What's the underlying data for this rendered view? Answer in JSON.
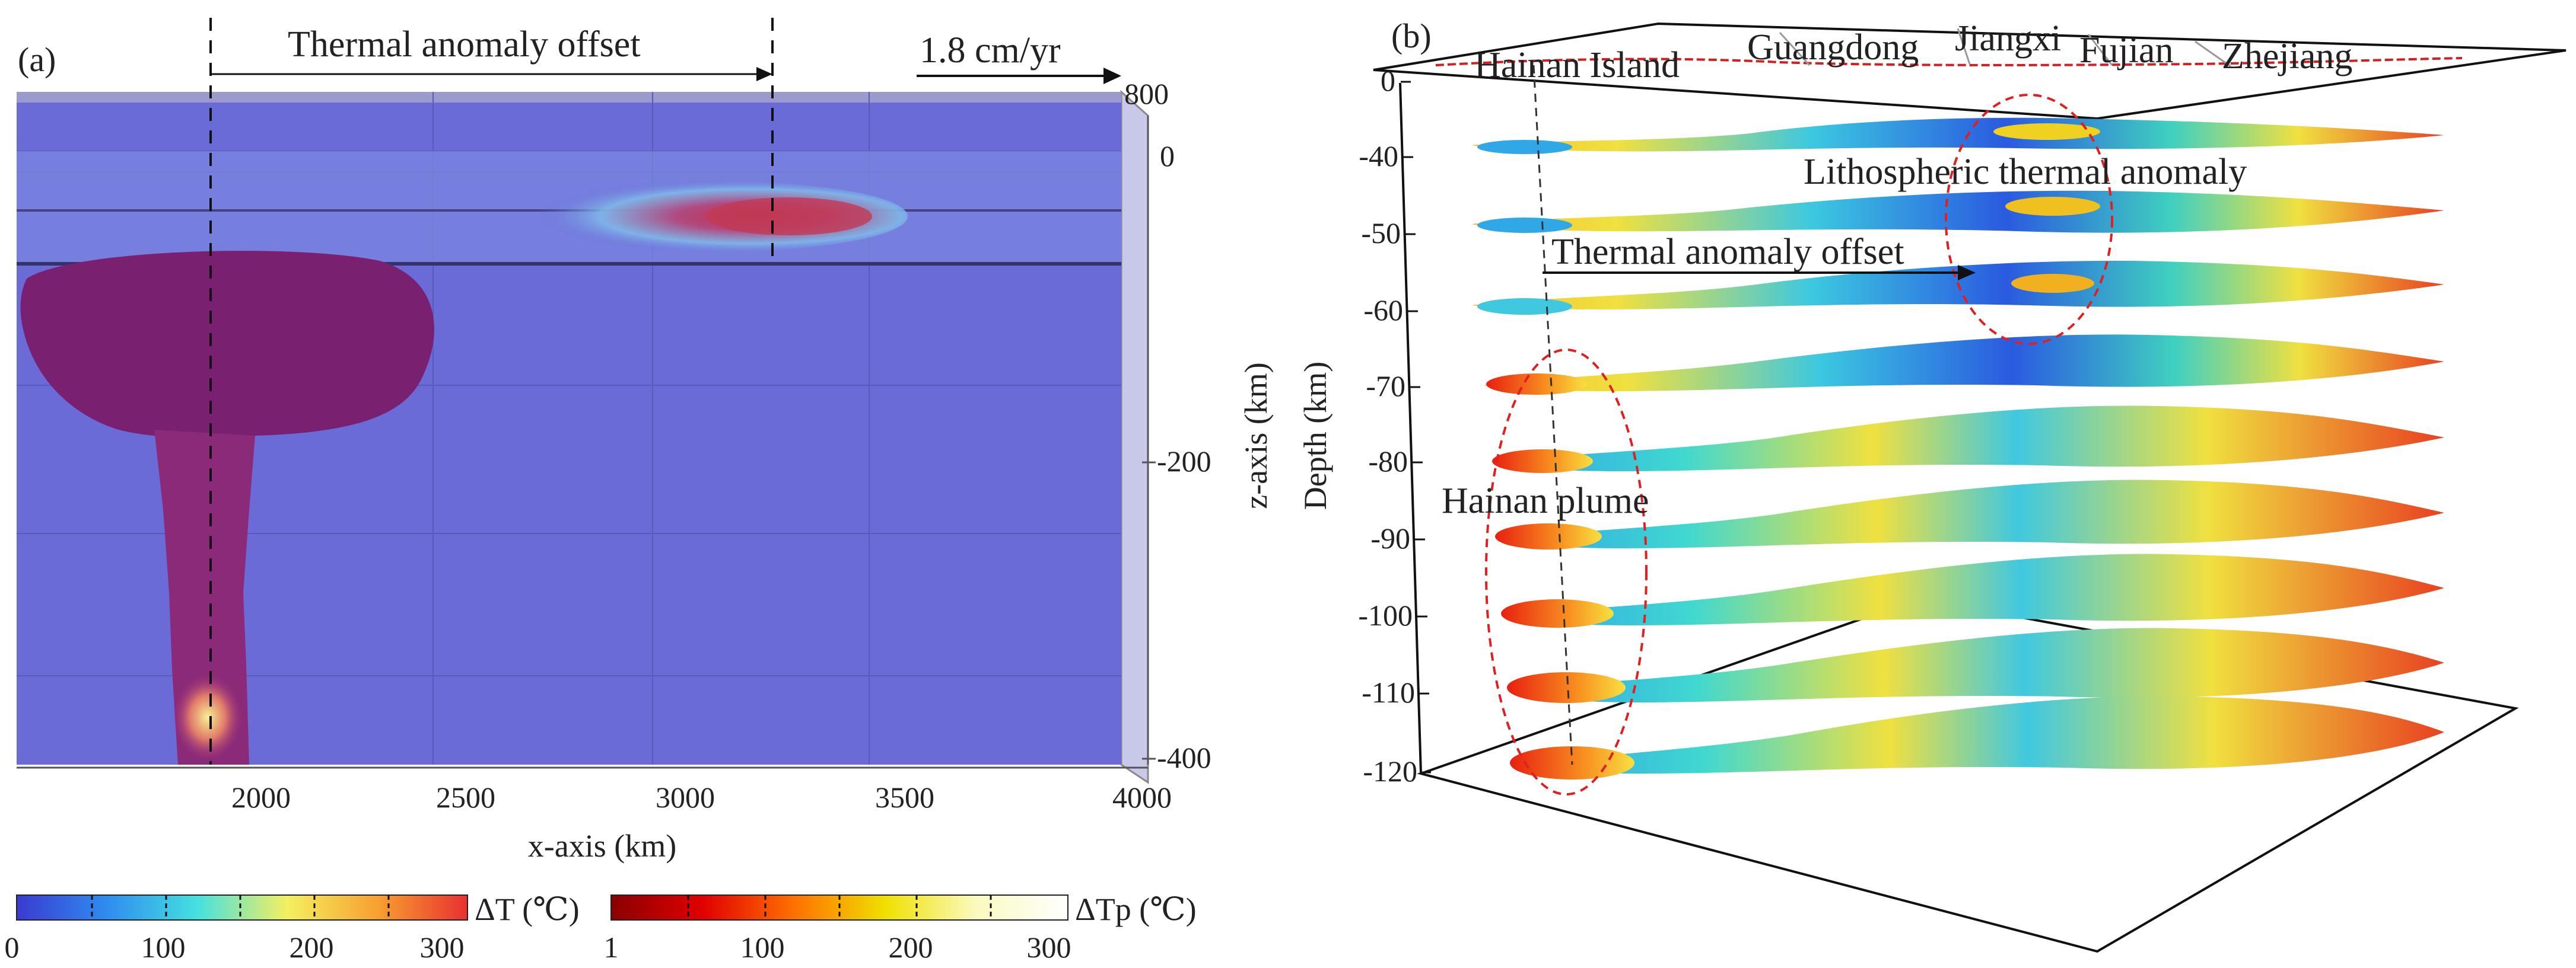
{
  "panel_a": {
    "label": "(a)",
    "offset_label": "Thermal anomaly offset",
    "velocity_label": "1.8 cm/yr",
    "x_axis_label": "x-axis (km)",
    "x_ticks": [
      "2000",
      "2500",
      "3000",
      "3500",
      "4000"
    ],
    "z_axis_label": "z-axis (km)",
    "z_ticks": [
      "800",
      "0",
      "-200",
      "-400"
    ]
  },
  "panel_b": {
    "label": "(b)",
    "y_axis_label": "Depth (km)",
    "depth_ticks": [
      "0",
      "-40",
      "-50",
      "-60",
      "-70",
      "-80",
      "-90",
      "-100",
      "-110",
      "-120"
    ],
    "provinces": [
      "Hainan Island",
      "Guangdong",
      "Jiangxi",
      "Fujian",
      "Zhejiang"
    ],
    "annotation_lithosphere": "Lithospheric thermal anomaly",
    "annotation_offset": "Thermal anomaly offset",
    "annotation_plume": "Hainan plume"
  },
  "colorbars": {
    "dT": {
      "label": "ΔT (℃)",
      "ticks": [
        "0",
        "100",
        "200",
        "300"
      ],
      "colors": [
        "#3a3ad0",
        "#2f8cf0",
        "#45e0e0",
        "#f4f060",
        "#f8a030",
        "#e83030"
      ]
    },
    "dTp": {
      "label": "ΔTp (℃)",
      "ticks": [
        "1",
        "100",
        "200",
        "300"
      ],
      "colors": [
        "#8a0000",
        "#e00000",
        "#ff7000",
        "#f0e000",
        "#fafac0",
        "#ffffff"
      ]
    }
  },
  "colors": {
    "box": "#6b6bd8",
    "plume": "#7a2070",
    "guide_ellipse": "#e02020"
  }
}
